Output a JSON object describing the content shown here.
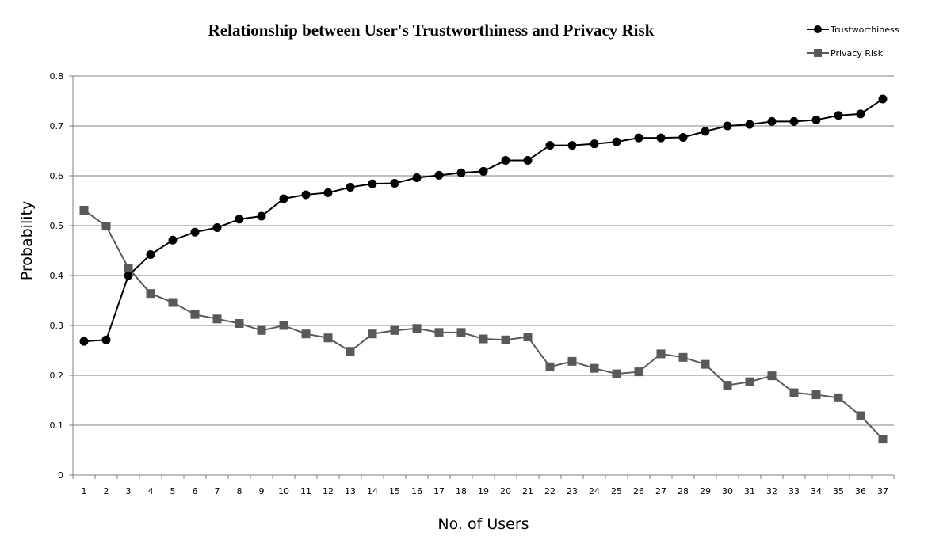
{
  "chart_data": {
    "type": "line",
    "title": "Relationship between User's Trustworthiness and Privacy Risk",
    "xlabel": "No. of Users",
    "ylabel": "Probability",
    "x": [
      1,
      2,
      3,
      4,
      5,
      6,
      7,
      8,
      9,
      10,
      11,
      12,
      13,
      14,
      15,
      16,
      17,
      18,
      19,
      20,
      21,
      22,
      23,
      24,
      25,
      26,
      27,
      28,
      29,
      30,
      31,
      32,
      33,
      34,
      35,
      36,
      37
    ],
    "ylim": [
      0,
      0.8
    ],
    "yticks": [
      "0",
      "0.1",
      "0.2",
      "0.3",
      "0.4",
      "0.5",
      "0.6",
      "0.7",
      "0.8"
    ],
    "grid": true,
    "legend_position": "top-right",
    "series": [
      {
        "name": "Trustworthiness",
        "marker": "circle",
        "color": "#000000",
        "values": [
          0.268,
          0.271,
          0.4,
          0.442,
          0.471,
          0.487,
          0.496,
          0.513,
          0.519,
          0.554,
          0.562,
          0.566,
          0.577,
          0.584,
          0.585,
          0.596,
          0.601,
          0.606,
          0.609,
          0.631,
          0.631,
          0.661,
          0.661,
          0.664,
          0.668,
          0.676,
          0.676,
          0.677,
          0.689,
          0.7,
          0.703,
          0.709,
          0.709,
          0.712,
          0.721,
          0.724,
          0.754
        ]
      },
      {
        "name": "Privacy Risk",
        "marker": "square",
        "color": "#595959",
        "values": [
          0.531,
          0.499,
          0.415,
          0.364,
          0.346,
          0.322,
          0.313,
          0.304,
          0.29,
          0.3,
          0.283,
          0.275,
          0.248,
          0.283,
          0.29,
          0.294,
          0.286,
          0.286,
          0.273,
          0.271,
          0.277,
          0.217,
          0.228,
          0.214,
          0.203,
          0.207,
          0.243,
          0.236,
          0.222,
          0.18,
          0.187,
          0.199,
          0.165,
          0.161,
          0.155,
          0.119,
          0.072
        ]
      }
    ]
  }
}
